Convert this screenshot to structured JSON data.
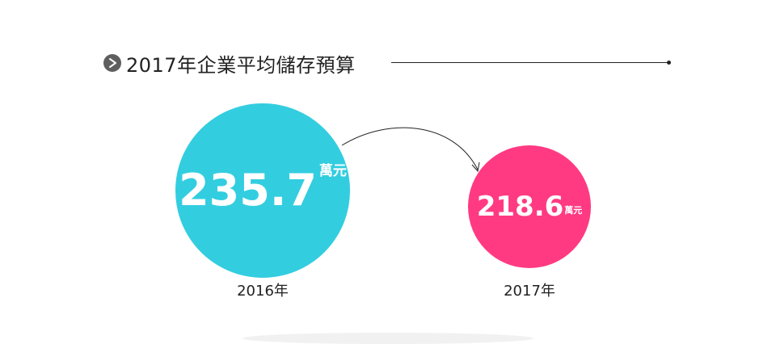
{
  "header": {
    "title": "2017年企業平均儲存預算"
  },
  "chart_data": {
    "type": "bubble",
    "title": "2017年企業平均儲存預算",
    "unit": "萬元",
    "categories": [
      "2016年",
      "2017年"
    ],
    "values": [
      235.7,
      218.6
    ],
    "value_labels": [
      "235.7",
      "218.6"
    ],
    "colors": [
      "#33cde0",
      "#ff3a82"
    ],
    "arrow": {
      "from": "2016年",
      "to": "2017年"
    }
  }
}
